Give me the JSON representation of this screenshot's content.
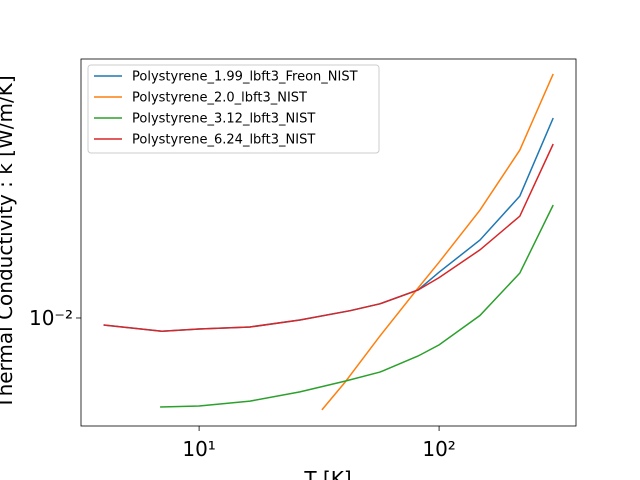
{
  "chart_data": {
    "type": "line",
    "xlabel": "T [K]",
    "ylabel": "Thermal Conductivity : k [W/m/K]",
    "log_x": true,
    "log_y": true,
    "grid": false,
    "legend": "upper left",
    "xlim": [
      3.22,
      372
    ],
    "ylim": [
      0.00423,
      0.0787
    ],
    "xticks": [
      {
        "value": 10,
        "label": "10¹"
      },
      {
        "value": 100,
        "label": "10²"
      }
    ],
    "yticks": [
      {
        "value": 0.01,
        "label": "10⁻²"
      }
    ],
    "series": [
      {
        "name": "Polystyrene_1.99_lbft3_Freon_NIST",
        "color": "#1f77b4",
        "x": [
          4,
          7,
          10,
          16.3,
          26.3,
          42.6,
          56.7,
          81.8,
          100,
          148,
          217,
          299
        ],
        "values": [
          0.00946,
          0.009,
          0.00916,
          0.00931,
          0.00984,
          0.0106,
          0.0112,
          0.0125,
          0.0144,
          0.0186,
          0.0264,
          0.0492
        ]
      },
      {
        "name": "Polystyrene_2.0_lbft3_NIST",
        "color": "#ff7f0e",
        "x": [
          32.5,
          40.6,
          56.7,
          81.8,
          100,
          148,
          217,
          299
        ],
        "values": [
          0.00481,
          0.006,
          0.00866,
          0.0127,
          0.0156,
          0.0236,
          0.0381,
          0.0699
        ]
      },
      {
        "name": "Polystyrene_3.12_lbft3_NIST",
        "color": "#2ca02c",
        "x": [
          6.88,
          10,
          16.3,
          26.3,
          40.6,
          56.7,
          81.8,
          100,
          148,
          217,
          299
        ],
        "values": [
          0.00492,
          0.00496,
          0.00516,
          0.00555,
          0.00605,
          0.0065,
          0.00739,
          0.00807,
          0.0102,
          0.0143,
          0.0246
        ]
      },
      {
        "name": "Polystyrene_6.24_lbft3_NIST",
        "color": "#d62728",
        "x": [
          4,
          7,
          10,
          16.3,
          26.3,
          42.6,
          56.7,
          81.8,
          100,
          148,
          217,
          299
        ],
        "values": [
          0.00946,
          0.009,
          0.00916,
          0.00931,
          0.00984,
          0.0106,
          0.0112,
          0.0125,
          0.0138,
          0.0172,
          0.0225,
          0.04
        ]
      }
    ]
  }
}
